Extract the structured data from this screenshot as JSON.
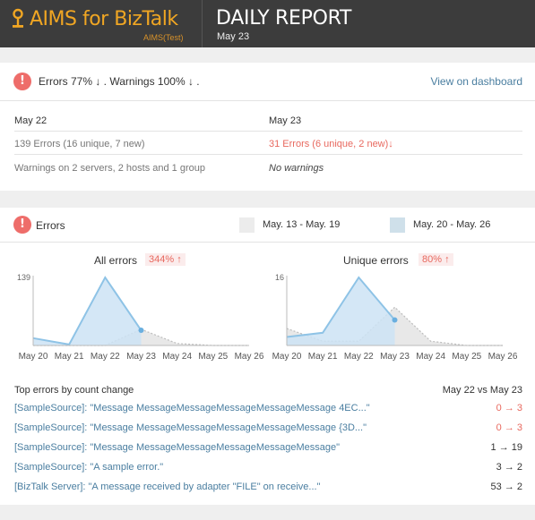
{
  "header": {
    "brand": "AIMS for BizTalk",
    "brand_sub": "AIMS(Test)",
    "title": "DAILY REPORT",
    "date": "May 23"
  },
  "summary": {
    "text": "Errors 77% ↓ . Warnings 100% ↓ .",
    "link": "View on dashboard",
    "prev_date": "May 22",
    "curr_date": "May 23",
    "prev_errors": "139 Errors (16 unique, 7 new)",
    "curr_errors": "31 Errors (6 unique, 2 new)↓",
    "prev_warnings": "Warnings on 2 servers, 2 hosts and 1 group",
    "curr_warnings": "No warnings"
  },
  "errors": {
    "title": "Errors",
    "legend": [
      {
        "label": "May. 13 - May. 19",
        "color": "#ececec"
      },
      {
        "label": "May. 20 - May. 26",
        "color": "#cfe0ea"
      }
    ],
    "top_title": "Top errors by count change",
    "top_compare": "May 22 vs May 23",
    "top_errors": [
      {
        "name": "[SampleSource]: \"Message MessageMessageMessageMessageMessage 4EC...\"",
        "change": "0 → 3",
        "color": "#e8695f"
      },
      {
        "name": "[SampleSource]: \"Message MessageMessageMessageMessageMessage {3D...\"",
        "change": "0 → 3",
        "color": "#e8695f"
      },
      {
        "name": "[SampleSource]: \"Message MessageMessageMessageMessageMessage\"",
        "change": "1 → 19",
        "color": "#333333"
      },
      {
        "name": "[SampleSource]: \"A sample error.\"",
        "change": "3 → 2",
        "color": "#333333"
      },
      {
        "name": "[BizTalk Server]: \"A message received by adapter \"FILE\" on receive...\"",
        "change": "53 → 2",
        "color": "#333333"
      }
    ]
  },
  "colors": {
    "current_line": "#8ec3e6",
    "current_fill": "#cde3f4",
    "previous_fill": "#e4e4e4",
    "previous_line": "#bdbdbd",
    "alert": "#ee6d6a",
    "link": "#4a7ea0"
  },
  "chart_data": [
    {
      "type": "area",
      "title": "All errors",
      "change": "344% ↑",
      "x": [
        "May 20",
        "May 21",
        "May 22",
        "May 23",
        "May 24",
        "May 25",
        "May 26"
      ],
      "ylim": [
        0,
        139
      ],
      "yticks": [
        139
      ],
      "series": [
        {
          "values": [
            15,
            2,
            139,
            31,
            null,
            null,
            null
          ]
        },
        {
          "values": [
            0,
            0,
            0,
            33,
            4,
            0,
            0
          ]
        }
      ]
    },
    {
      "type": "area",
      "title": "Unique errors",
      "change": "80% ↑",
      "x": [
        "May 20",
        "May 21",
        "May 22",
        "May 23",
        "May 24",
        "May 25",
        "May 26"
      ],
      "ylim": [
        0,
        16
      ],
      "yticks": [
        16
      ],
      "series": [
        {
          "values": [
            2,
            3,
            16,
            6,
            null,
            null,
            null
          ]
        },
        {
          "values": [
            4,
            1,
            1,
            9,
            1,
            0,
            0
          ]
        }
      ]
    }
  ]
}
